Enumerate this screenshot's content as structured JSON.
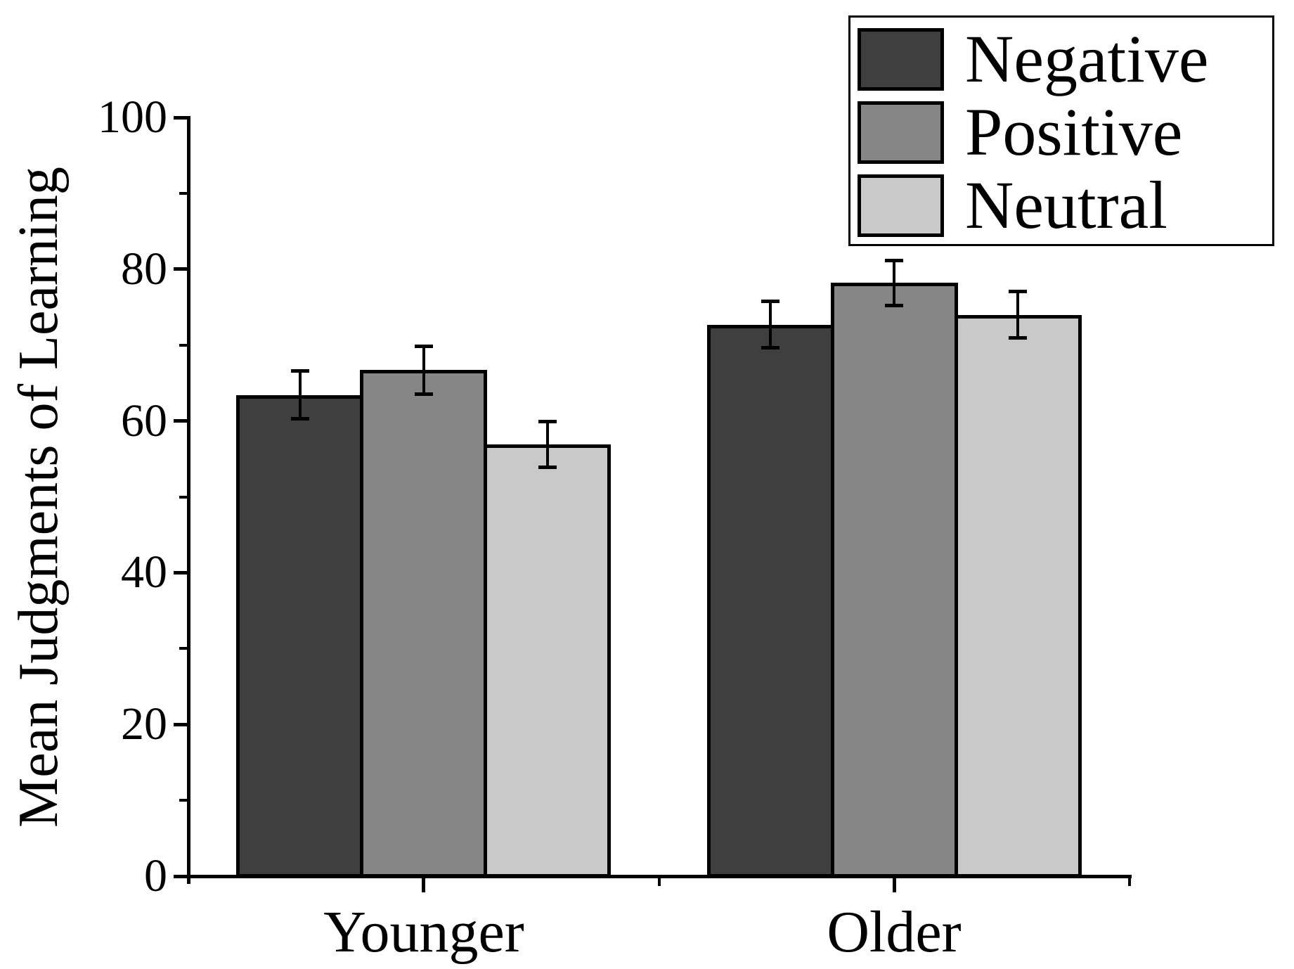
{
  "chart_data": {
    "type": "bar",
    "title": "",
    "xlabel": "",
    "ylabel": "Mean Judgments of Learning",
    "categories": [
      "Younger",
      "Older"
    ],
    "series": [
      {
        "name": "Negative",
        "color": "#3f3f3f",
        "values": [
          63.4,
          72.7
        ],
        "errors": [
          3.2,
          3.1
        ]
      },
      {
        "name": "Positive",
        "color": "#868686",
        "values": [
          66.7,
          78.2
        ],
        "errors": [
          3.2,
          3.0
        ]
      },
      {
        "name": "Neutral",
        "color": "#c9c9c9",
        "values": [
          56.9,
          74.0
        ],
        "errors": [
          3.1,
          3.1
        ]
      }
    ],
    "ylim": [
      0,
      100
    ],
    "yticks_major": [
      0,
      20,
      40,
      60,
      80,
      100
    ],
    "yticks_minor": [
      10,
      30,
      50,
      70,
      90
    ],
    "grid": false,
    "legend_position": "top-right",
    "error_bars": true,
    "bar_edge_color": "#000000",
    "background_color": "#ffffff"
  }
}
